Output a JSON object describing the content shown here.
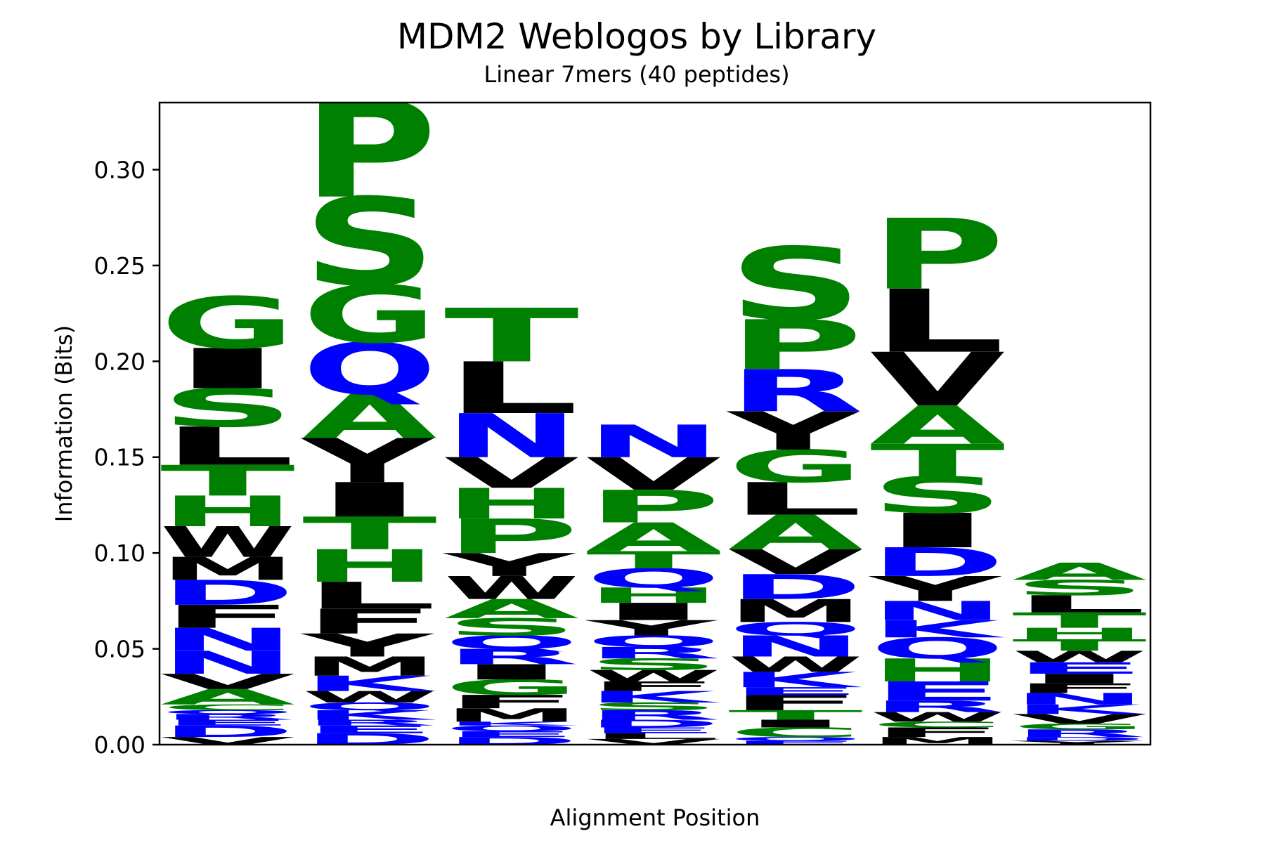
{
  "chart_data": {
    "type": "sequence-logo",
    "title": "MDM2 Weblogos by Library",
    "subtitle": "Linear 7mers (40 peptides)",
    "xlabel": "Alignment Position",
    "ylabel": "Information (Bits)",
    "ylim": [
      0,
      0.335
    ],
    "yticks": [
      0.0,
      0.05,
      0.1,
      0.15,
      0.2,
      0.25,
      0.3
    ],
    "ytick_labels": [
      "0.00",
      "0.05",
      "0.10",
      "0.15",
      "0.20",
      "0.25",
      "0.30"
    ],
    "color_scheme": {
      "G": "#008000",
      "S": "#008000",
      "T": "#008000",
      "H": "#008000",
      "A": "#008000",
      "P": "#008000",
      "C": "#008000",
      "Y": "#000000",
      "W": "#000000",
      "M": "#000000",
      "F": "#000000",
      "L": "#000000",
      "I": "#000000",
      "V": "#000000",
      "N": "#0000ff",
      "Q": "#0000ff",
      "D": "#0000ff",
      "E": "#0000ff",
      "R": "#0000ff",
      "K": "#0000ff"
    },
    "positions": [
      {
        "position": 1,
        "letters": [
          {
            "letter": "V",
            "bottom": 0.0,
            "top": 0.004
          },
          {
            "letter": "D",
            "bottom": 0.004,
            "top": 0.01
          },
          {
            "letter": "E",
            "bottom": 0.01,
            "top": 0.013
          },
          {
            "letter": "R",
            "bottom": 0.013,
            "top": 0.016
          },
          {
            "letter": "Q",
            "bottom": 0.016,
            "top": 0.018
          },
          {
            "letter": "C",
            "bottom": 0.018,
            "top": 0.021
          },
          {
            "letter": "A",
            "bottom": 0.021,
            "top": 0.029
          },
          {
            "letter": "V",
            "bottom": 0.029,
            "top": 0.037
          },
          {
            "letter": "N",
            "bottom": 0.037,
            "top": 0.049
          },
          {
            "letter": "N",
            "bottom": 0.049,
            "top": 0.061
          },
          {
            "letter": "F",
            "bottom": 0.061,
            "top": 0.073
          },
          {
            "letter": "D",
            "bottom": 0.073,
            "top": 0.086
          },
          {
            "letter": "M",
            "bottom": 0.086,
            "top": 0.098
          },
          {
            "letter": "W",
            "bottom": 0.098,
            "top": 0.114
          },
          {
            "letter": "H",
            "bottom": 0.114,
            "top": 0.13
          },
          {
            "letter": "T",
            "bottom": 0.13,
            "top": 0.146
          },
          {
            "letter": "L",
            "bottom": 0.146,
            "top": 0.166
          },
          {
            "letter": "S",
            "bottom": 0.166,
            "top": 0.186
          },
          {
            "letter": "I",
            "bottom": 0.186,
            "top": 0.207
          },
          {
            "letter": "G",
            "bottom": 0.207,
            "top": 0.234
          }
        ]
      },
      {
        "position": 2,
        "letters": [
          {
            "letter": "D",
            "bottom": 0.0,
            "top": 0.006
          },
          {
            "letter": "E",
            "bottom": 0.006,
            "top": 0.01
          },
          {
            "letter": "R",
            "bottom": 0.01,
            "top": 0.013
          },
          {
            "letter": "K",
            "bottom": 0.013,
            "top": 0.018
          },
          {
            "letter": "Q",
            "bottom": 0.018,
            "top": 0.022
          },
          {
            "letter": "W",
            "bottom": 0.022,
            "top": 0.028
          },
          {
            "letter": "K",
            "bottom": 0.028,
            "top": 0.036
          },
          {
            "letter": "M",
            "bottom": 0.036,
            "top": 0.046
          },
          {
            "letter": "Y",
            "bottom": 0.046,
            "top": 0.058
          },
          {
            "letter": "F",
            "bottom": 0.058,
            "top": 0.071
          },
          {
            "letter": "L",
            "bottom": 0.071,
            "top": 0.085
          },
          {
            "letter": "H",
            "bottom": 0.085,
            "top": 0.102
          },
          {
            "letter": "T",
            "bottom": 0.102,
            "top": 0.119
          },
          {
            "letter": "I",
            "bottom": 0.119,
            "top": 0.137
          },
          {
            "letter": "Y",
            "bottom": 0.137,
            "top": 0.16
          },
          {
            "letter": "A",
            "bottom": 0.16,
            "top": 0.183
          },
          {
            "letter": "Q",
            "bottom": 0.183,
            "top": 0.21
          },
          {
            "letter": "G",
            "bottom": 0.21,
            "top": 0.24
          },
          {
            "letter": "S",
            "bottom": 0.24,
            "top": 0.286
          },
          {
            "letter": "P",
            "bottom": 0.286,
            "top": 0.337
          }
        ]
      },
      {
        "position": 3,
        "letters": [
          {
            "letter": "D",
            "bottom": 0.0,
            "top": 0.004
          },
          {
            "letter": "E",
            "bottom": 0.004,
            "top": 0.007
          },
          {
            "letter": "Q",
            "bottom": 0.007,
            "top": 0.01
          },
          {
            "letter": "K",
            "bottom": 0.01,
            "top": 0.012
          },
          {
            "letter": "M",
            "bottom": 0.012,
            "top": 0.019
          },
          {
            "letter": "F",
            "bottom": 0.019,
            "top": 0.026
          },
          {
            "letter": "G",
            "bottom": 0.026,
            "top": 0.034
          },
          {
            "letter": "I",
            "bottom": 0.034,
            "top": 0.042
          },
          {
            "letter": "R",
            "bottom": 0.042,
            "top": 0.05
          },
          {
            "letter": "Q",
            "bottom": 0.05,
            "top": 0.057
          },
          {
            "letter": "S",
            "bottom": 0.057,
            "top": 0.066
          },
          {
            "letter": "A",
            "bottom": 0.066,
            "top": 0.076
          },
          {
            "letter": "W",
            "bottom": 0.076,
            "top": 0.088
          },
          {
            "letter": "Y",
            "bottom": 0.088,
            "top": 0.1
          },
          {
            "letter": "P",
            "bottom": 0.1,
            "top": 0.118
          },
          {
            "letter": "H",
            "bottom": 0.118,
            "top": 0.134
          },
          {
            "letter": "V",
            "bottom": 0.134,
            "top": 0.15
          },
          {
            "letter": "N",
            "bottom": 0.15,
            "top": 0.173
          },
          {
            "letter": "L",
            "bottom": 0.173,
            "top": 0.2
          },
          {
            "letter": "T",
            "bottom": 0.2,
            "top": 0.228
          }
        ]
      },
      {
        "position": 4,
        "letters": [
          {
            "letter": "V",
            "bottom": 0.0,
            "top": 0.003
          },
          {
            "letter": "L",
            "bottom": 0.003,
            "top": 0.006
          },
          {
            "letter": "E",
            "bottom": 0.006,
            "top": 0.009
          },
          {
            "letter": "D",
            "bottom": 0.009,
            "top": 0.013
          },
          {
            "letter": "R",
            "bottom": 0.013,
            "top": 0.018
          },
          {
            "letter": "S",
            "bottom": 0.018,
            "top": 0.022
          },
          {
            "letter": "K",
            "bottom": 0.022,
            "top": 0.028
          },
          {
            "letter": "F",
            "bottom": 0.028,
            "top": 0.033
          },
          {
            "letter": "W",
            "bottom": 0.033,
            "top": 0.039
          },
          {
            "letter": "S",
            "bottom": 0.039,
            "top": 0.045
          },
          {
            "letter": "R",
            "bottom": 0.045,
            "top": 0.051
          },
          {
            "letter": "Q",
            "bottom": 0.051,
            "top": 0.057
          },
          {
            "letter": "Y",
            "bottom": 0.057,
            "top": 0.065
          },
          {
            "letter": "I",
            "bottom": 0.065,
            "top": 0.074
          },
          {
            "letter": "H",
            "bottom": 0.074,
            "top": 0.082
          },
          {
            "letter": "Q",
            "bottom": 0.082,
            "top": 0.092
          },
          {
            "letter": "T",
            "bottom": 0.092,
            "top": 0.101
          },
          {
            "letter": "A",
            "bottom": 0.101,
            "top": 0.116
          },
          {
            "letter": "P",
            "bottom": 0.116,
            "top": 0.133
          },
          {
            "letter": "V",
            "bottom": 0.133,
            "top": 0.15
          },
          {
            "letter": "N",
            "bottom": 0.15,
            "top": 0.167
          }
        ]
      },
      {
        "position": 5,
        "letters": [
          {
            "letter": "E",
            "bottom": 0.0,
            "top": 0.002
          },
          {
            "letter": "Q",
            "bottom": 0.002,
            "top": 0.004
          },
          {
            "letter": "C",
            "bottom": 0.004,
            "top": 0.009
          },
          {
            "letter": "I",
            "bottom": 0.009,
            "top": 0.013
          },
          {
            "letter": "T",
            "bottom": 0.013,
            "top": 0.018
          },
          {
            "letter": "F",
            "bottom": 0.018,
            "top": 0.026
          },
          {
            "letter": "E",
            "bottom": 0.026,
            "top": 0.03
          },
          {
            "letter": "K",
            "bottom": 0.03,
            "top": 0.038
          },
          {
            "letter": "W",
            "bottom": 0.038,
            "top": 0.046
          },
          {
            "letter": "N",
            "bottom": 0.046,
            "top": 0.057
          },
          {
            "letter": "Q",
            "bottom": 0.057,
            "top": 0.064
          },
          {
            "letter": "M",
            "bottom": 0.064,
            "top": 0.076
          },
          {
            "letter": "D",
            "bottom": 0.076,
            "top": 0.089
          },
          {
            "letter": "V",
            "bottom": 0.089,
            "top": 0.102
          },
          {
            "letter": "A",
            "bottom": 0.102,
            "top": 0.12
          },
          {
            "letter": "L",
            "bottom": 0.12,
            "top": 0.137
          },
          {
            "letter": "G",
            "bottom": 0.137,
            "top": 0.154
          },
          {
            "letter": "Y",
            "bottom": 0.154,
            "top": 0.174
          },
          {
            "letter": "R",
            "bottom": 0.174,
            "top": 0.196
          },
          {
            "letter": "P",
            "bottom": 0.196,
            "top": 0.222
          },
          {
            "letter": "S",
            "bottom": 0.222,
            "top": 0.26
          }
        ]
      },
      {
        "position": 6,
        "letters": [
          {
            "letter": "M",
            "bottom": 0.0,
            "top": 0.004
          },
          {
            "letter": "F",
            "bottom": 0.004,
            "top": 0.009
          },
          {
            "letter": "C",
            "bottom": 0.009,
            "top": 0.012
          },
          {
            "letter": "W",
            "bottom": 0.012,
            "top": 0.017
          },
          {
            "letter": "R",
            "bottom": 0.017,
            "top": 0.023
          },
          {
            "letter": "E",
            "bottom": 0.023,
            "top": 0.033
          },
          {
            "letter": "H",
            "bottom": 0.033,
            "top": 0.045
          },
          {
            "letter": "Q",
            "bottom": 0.045,
            "top": 0.056
          },
          {
            "letter": "K",
            "bottom": 0.056,
            "top": 0.065
          },
          {
            "letter": "N",
            "bottom": 0.065,
            "top": 0.075
          },
          {
            "letter": "Y",
            "bottom": 0.075,
            "top": 0.088
          },
          {
            "letter": "D",
            "bottom": 0.088,
            "top": 0.103
          },
          {
            "letter": "I",
            "bottom": 0.103,
            "top": 0.121
          },
          {
            "letter": "S",
            "bottom": 0.121,
            "top": 0.14
          },
          {
            "letter": "T",
            "bottom": 0.14,
            "top": 0.157
          },
          {
            "letter": "A",
            "bottom": 0.157,
            "top": 0.177
          },
          {
            "letter": "V",
            "bottom": 0.177,
            "top": 0.205
          },
          {
            "letter": "L",
            "bottom": 0.205,
            "top": 0.238
          },
          {
            "letter": "P",
            "bottom": 0.238,
            "top": 0.275
          }
        ]
      },
      {
        "position": 7,
        "letters": [
          {
            "letter": "Y",
            "bottom": 0.0,
            "top": 0.002
          },
          {
            "letter": "D",
            "bottom": 0.002,
            "top": 0.004
          },
          {
            "letter": "R",
            "bottom": 0.004,
            "top": 0.008
          },
          {
            "letter": "G",
            "bottom": 0.008,
            "top": 0.011
          },
          {
            "letter": "V",
            "bottom": 0.011,
            "top": 0.016
          },
          {
            "letter": "K",
            "bottom": 0.016,
            "top": 0.021
          },
          {
            "letter": "N",
            "bottom": 0.021,
            "top": 0.027
          },
          {
            "letter": "F",
            "bottom": 0.027,
            "top": 0.032
          },
          {
            "letter": "I",
            "bottom": 0.032,
            "top": 0.037
          },
          {
            "letter": "E",
            "bottom": 0.037,
            "top": 0.043
          },
          {
            "letter": "W",
            "bottom": 0.043,
            "top": 0.049
          },
          {
            "letter": "T",
            "bottom": 0.049,
            "top": 0.055
          },
          {
            "letter": "H",
            "bottom": 0.055,
            "top": 0.061
          },
          {
            "letter": "T",
            "bottom": 0.061,
            "top": 0.069
          },
          {
            "letter": "L",
            "bottom": 0.069,
            "top": 0.078
          },
          {
            "letter": "S",
            "bottom": 0.078,
            "top": 0.086
          },
          {
            "letter": "A",
            "bottom": 0.086,
            "top": 0.095
          }
        ]
      }
    ]
  }
}
